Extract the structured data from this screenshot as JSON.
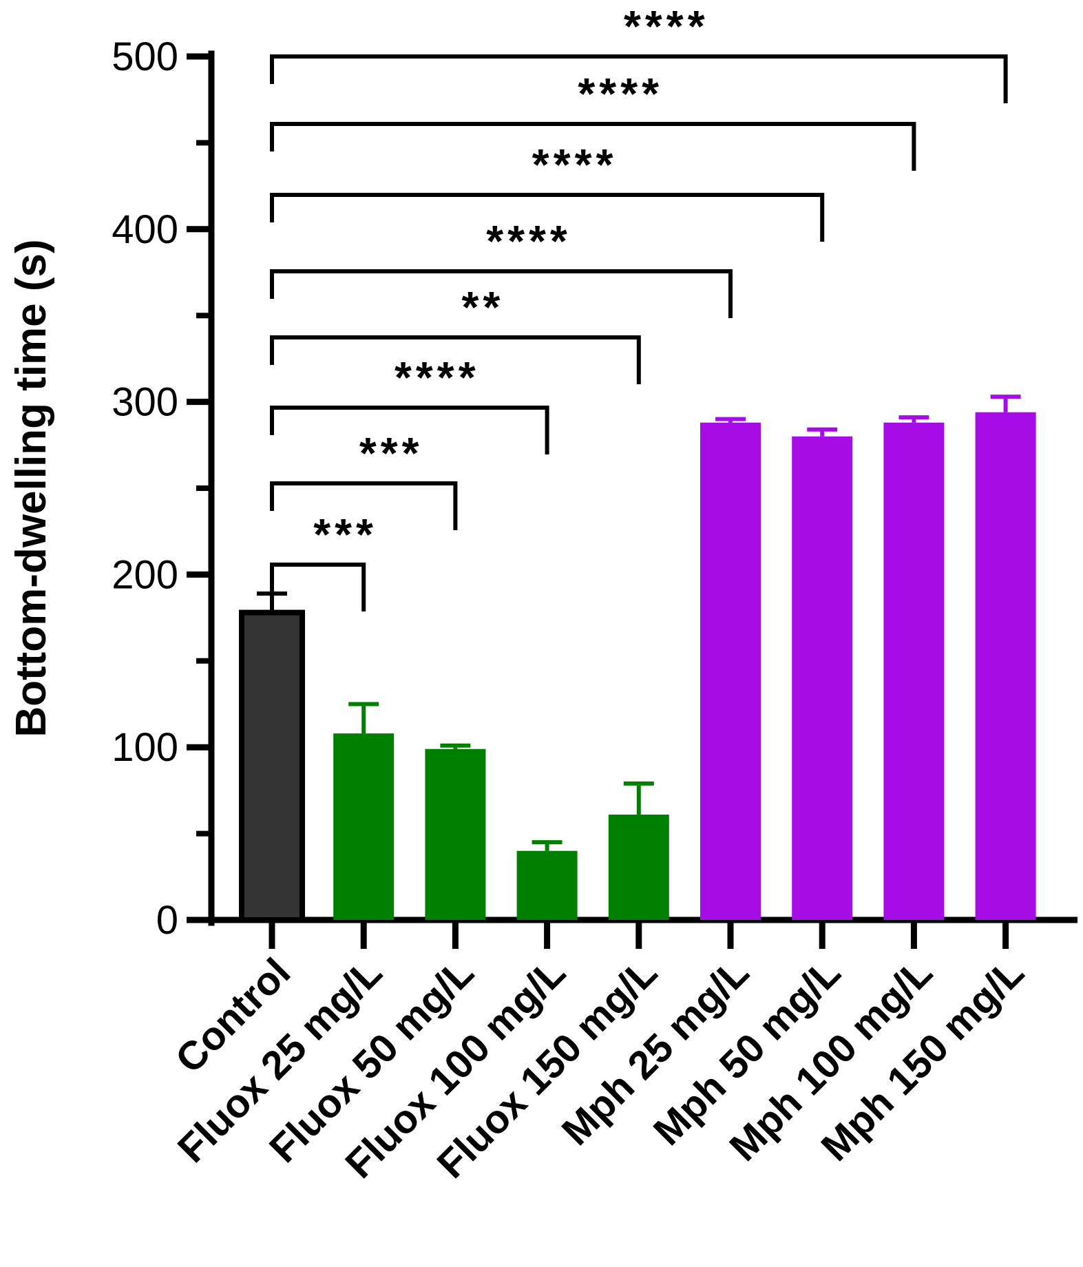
{
  "chart_data": {
    "type": "bar",
    "title": "",
    "xlabel": "",
    "ylabel": "Bottom-dwelling time (s)",
    "ylim": [
      0,
      500
    ],
    "yticks": [
      0,
      100,
      200,
      300,
      400,
      500
    ],
    "yticks_minor": [
      50,
      150,
      250,
      350,
      450
    ],
    "grid": false,
    "categories": [
      "Control",
      "Fluox 25 mg/L",
      "Fluox 50 mg/L",
      "Fluox 100 mg/L",
      "Fluox 150 mg/L",
      "Mph 25 mg/L",
      "Mph 50 mg/L",
      "Mph 100 mg/L",
      "Mph 150 mg/L"
    ],
    "values": [
      178,
      108,
      99,
      40,
      61,
      288,
      280,
      288,
      294
    ],
    "errors": [
      11,
      17,
      2,
      5,
      18,
      2,
      4,
      3,
      9
    ],
    "colors": [
      "#333333",
      "#008000",
      "#008000",
      "#008000",
      "#008000",
      "#a50ce6",
      "#a50ce6",
      "#a50ce6",
      "#a50ce6"
    ],
    "outline_color": "#000000",
    "significance": [
      {
        "from": 0,
        "to": 1,
        "label": "***"
      },
      {
        "from": 0,
        "to": 2,
        "label": "***"
      },
      {
        "from": 0,
        "to": 3,
        "label": "****"
      },
      {
        "from": 0,
        "to": 4,
        "label": "**"
      },
      {
        "from": 0,
        "to": 5,
        "label": "****"
      },
      {
        "from": 0,
        "to": 6,
        "label": "****"
      },
      {
        "from": 0,
        "to": 7,
        "label": "****"
      },
      {
        "from": 0,
        "to": 8,
        "label": "****"
      }
    ]
  }
}
